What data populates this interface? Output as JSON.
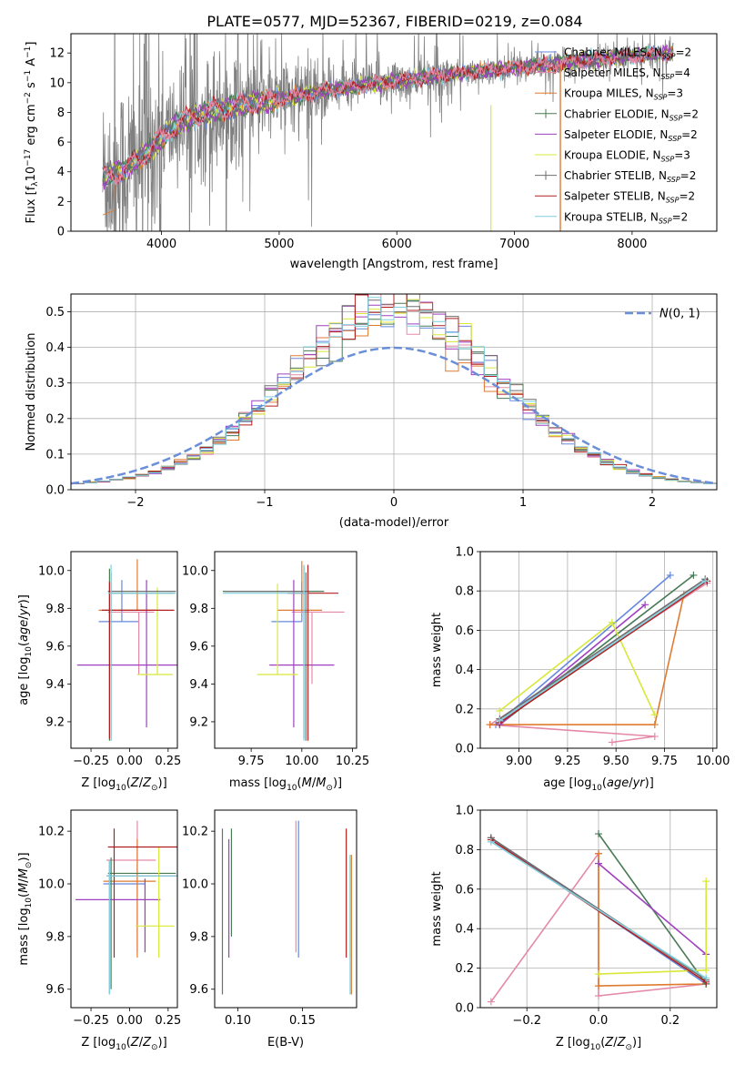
{
  "title": "PLATE=0577, MJD=52367, FIBERID=0219, z=0.084",
  "colors": {
    "series": [
      "#6688dd",
      "#e48aa8",
      "#e07a30",
      "#4a7a55",
      "#a040c0",
      "#d8e838",
      "#6e6e6e",
      "#b02020",
      "#80d0e0"
    ],
    "spectrum": "#808080",
    "dashed": "#6a8fd8",
    "grid": "#b0b0b0"
  },
  "legend_names": [
    "Chabrier MILES, N_SSP=2",
    "Salpeter MILES, N_SSP=4",
    "Kroupa MILES, N_SSP=3",
    "Chabrier ELODIE, N_SSP=2",
    "Salpeter ELODIE, N_SSP=2",
    "Kroupa ELODIE, N_SSP=3",
    "Chabrier STELIB, N_SSP=2",
    "Salpeter STELIB, N_SSP=2",
    "Kroupa STELIB, N_SSP=2"
  ],
  "chart_data": [
    {
      "id": "spectrum",
      "type": "line",
      "xlabel": "wavelength [Angstrom, rest frame]",
      "ylabel": "Flux [f_λ 10^-17 erg cm^-2 s^-1 A^-1]",
      "xlim": [
        3230,
        8720
      ],
      "ylim": [
        0,
        13.3
      ],
      "xticks": [
        4000,
        5000,
        6000,
        7000,
        8000
      ],
      "yticks": [
        0,
        2,
        4,
        6,
        8,
        10,
        12
      ],
      "grid": false,
      "legend_position": "right",
      "data_range_x": [
        3500,
        8350
      ],
      "model_points": [
        [
          3500,
          3.6
        ],
        [
          3700,
          4.2
        ],
        [
          3900,
          5.5
        ],
        [
          4100,
          7.0
        ],
        [
          4300,
          7.8
        ],
        [
          4600,
          8.4
        ],
        [
          5000,
          8.9
        ],
        [
          5500,
          9.6
        ],
        [
          6000,
          10.1
        ],
        [
          6500,
          10.6
        ],
        [
          7000,
          11.0
        ],
        [
          7500,
          11.4
        ],
        [
          8000,
          11.8
        ],
        [
          8350,
          12.0
        ]
      ]
    },
    {
      "id": "residuals",
      "type": "histogram",
      "xlabel": "(data-model)/error",
      "ylabel": "Normed distribution",
      "xlim": [
        -2.5,
        2.5
      ],
      "ylim": [
        0,
        0.55
      ],
      "xticks": [
        -2,
        -1,
        0,
        1,
        2
      ],
      "yticks": [
        0.0,
        0.1,
        0.2,
        0.3,
        0.4,
        0.5
      ],
      "grid": true,
      "legend": "N(0,1)",
      "legend_position": "top-right",
      "bin_width": 0.1,
      "approx_peak": 0.49,
      "reference_curve": "standard normal pdf"
    },
    {
      "id": "age_vs_Z",
      "type": "errorbar",
      "xlabel": "Z [log10(Z/Z⊙)]",
      "ylabel": "age  [log10(age/yr)]",
      "xlim": [
        -0.38,
        0.31
      ],
      "ylim": [
        9.06,
        10.1
      ],
      "xticks": [
        -0.25,
        0.0,
        0.25
      ],
      "yticks": [
        9.2,
        9.4,
        9.6,
        9.8,
        10.0
      ],
      "points": [
        {
          "x": -0.05,
          "y": 9.73,
          "xerr": [
            0.15,
            0.11
          ],
          "yerr": [
            0.0,
            0.22
          ]
        },
        {
          "x": 0.06,
          "y": 9.78,
          "xerr": [
            0.2,
            0.1
          ],
          "yerr": [
            0.33,
            0.0
          ]
        },
        {
          "x": 0.05,
          "y": 9.79,
          "xerr": [
            0.25,
            0.12
          ],
          "yerr": [
            0.0,
            0.27
          ]
        },
        {
          "x": -0.13,
          "y": 9.88,
          "xerr": [
            0.0,
            0.42
          ],
          "yerr": [
            0.78,
            0.13
          ]
        },
        {
          "x": 0.11,
          "y": 9.5,
          "xerr": [
            0.45,
            0.2
          ],
          "yerr": [
            0.33,
            0.45
          ]
        },
        {
          "x": 0.18,
          "y": 9.45,
          "xerr": [
            0.13,
            0.1
          ],
          "yerr": [
            0.0,
            0.46
          ]
        },
        {
          "x": -0.12,
          "y": 9.89,
          "xerr": [
            0.02,
            0.42
          ],
          "yerr": [
            0.79,
            0.1
          ]
        },
        {
          "x": -0.13,
          "y": 9.79,
          "xerr": [
            0.05,
            0.42
          ],
          "yerr": [
            0.68,
            0.15
          ]
        },
        {
          "x": -0.12,
          "y": 9.88,
          "xerr": [
            0.02,
            0.42
          ],
          "yerr": [
            0.78,
            0.15
          ]
        }
      ]
    },
    {
      "id": "age_vs_mass",
      "type": "errorbar",
      "xlabel": "mass [log10(M/M⊙)]",
      "ylabel": "",
      "xlim": [
        9.57,
        10.27
      ],
      "ylim": [
        9.06,
        10.1
      ],
      "xticks": [
        9.75,
        10.0,
        10.25
      ],
      "yticks": [
        9.2,
        9.4,
        9.6,
        9.8,
        10.0
      ],
      "points": [
        {
          "x": 10.0,
          "y": 9.73,
          "xerr": [
            0.15,
            0.0
          ],
          "yerr": [
            0.0,
            0.21
          ]
        },
        {
          "x": 10.05,
          "y": 9.78,
          "xerr": [
            0.1,
            0.16
          ],
          "yerr": [
            0.38,
            0.0
          ]
        },
        {
          "x": 10.0,
          "y": 9.79,
          "xerr": [
            0.12,
            0.1
          ],
          "yerr": [
            0.0,
            0.26
          ]
        },
        {
          "x": 10.01,
          "y": 9.89,
          "xerr": [
            0.4,
            0.1
          ],
          "yerr": [
            0.78,
            0.13
          ]
        },
        {
          "x": 9.96,
          "y": 9.5,
          "xerr": [
            0.12,
            0.2
          ],
          "yerr": [
            0.33,
            0.45
          ]
        },
        {
          "x": 9.88,
          "y": 9.45,
          "xerr": [
            0.1,
            0.1
          ],
          "yerr": [
            0.0,
            0.48
          ]
        },
        {
          "x": 10.02,
          "y": 9.89,
          "xerr": [
            0.4,
            0.02
          ],
          "yerr": [
            0.79,
            0.1
          ]
        },
        {
          "x": 10.03,
          "y": 9.88,
          "xerr": [
            0.1,
            0.15
          ],
          "yerr": [
            0.78,
            0.15
          ]
        },
        {
          "x": 10.01,
          "y": 9.88,
          "xerr": [
            0.4,
            0.02
          ],
          "yerr": [
            0.78,
            0.15
          ]
        }
      ]
    },
    {
      "id": "weight_vs_age",
      "type": "line",
      "xlabel": "age  [log10(age/yr)]",
      "ylabel": "mass weight",
      "xlim": [
        8.8,
        10.02
      ],
      "ylim": [
        0,
        1.0
      ],
      "xticks": [
        9.0,
        9.25,
        9.5,
        9.75,
        10.0
      ],
      "yticks": [
        0.0,
        0.2,
        0.4,
        0.6,
        0.8,
        1.0
      ],
      "grid": true,
      "series": [
        {
          "x": [
            8.88,
            9.78
          ],
          "y": [
            0.12,
            0.88
          ]
        },
        {
          "x": [
            9.48,
            9.7,
            8.85,
            9.97
          ],
          "y": [
            0.03,
            0.06,
            0.12,
            0.84
          ]
        },
        {
          "x": [
            8.85,
            9.7,
            9.85
          ],
          "y": [
            0.12,
            0.12,
            0.78
          ]
        },
        {
          "x": [
            8.9,
            9.9
          ],
          "y": [
            0.12,
            0.88
          ]
        },
        {
          "x": [
            8.9,
            9.65
          ],
          "y": [
            0.12,
            0.73
          ]
        },
        {
          "x": [
            8.9,
            9.48,
            9.7
          ],
          "y": [
            0.19,
            0.64,
            0.17
          ]
        },
        {
          "x": [
            8.9,
            9.96
          ],
          "y": [
            0.15,
            0.86
          ]
        },
        {
          "x": [
            8.9,
            9.97
          ],
          "y": [
            0.13,
            0.85
          ]
        },
        {
          "x": [
            8.9,
            9.96
          ],
          "y": [
            0.14,
            0.85
          ]
        }
      ]
    },
    {
      "id": "mass_vs_Z",
      "type": "errorbar",
      "xlabel": "Z [log10(Z/Z⊙)]",
      "ylabel": "mass [log10(M/M⊙)]",
      "xlim": [
        -0.38,
        0.31
      ],
      "ylim": [
        9.53,
        10.28
      ],
      "xticks": [
        -0.25,
        0.0,
        0.25
      ],
      "yticks": [
        9.6,
        9.8,
        10.0,
        10.2
      ],
      "points": [
        {
          "x": -0.02,
          "y": 10.0,
          "xerr": [
            0.15,
            0.12
          ],
          "yerr": [
            0.0,
            0.0
          ]
        },
        {
          "x": 0.05,
          "y": 10.09,
          "xerr": [
            0.2,
            0.12
          ],
          "yerr": [
            0.35,
            0.15
          ]
        },
        {
          "x": 0.05,
          "y": 10.01,
          "xerr": [
            0.22,
            0.12
          ],
          "yerr": [
            0.29,
            0.16
          ]
        },
        {
          "x": -0.12,
          "y": 10.04,
          "xerr": [
            0.02,
            0.42
          ],
          "yerr": [
            0.44,
            0.06
          ]
        },
        {
          "x": 0.1,
          "y": 9.94,
          "xerr": [
            0.45,
            0.1
          ],
          "yerr": [
            0.2,
            0.08
          ]
        },
        {
          "x": 0.19,
          "y": 9.84,
          "xerr": [
            0.15,
            0.1
          ],
          "yerr": [
            0.12,
            0.3
          ]
        },
        {
          "x": -0.13,
          "y": 10.03,
          "xerr": [
            0.02,
            0.45
          ],
          "yerr": [
            0.45,
            0.06
          ]
        },
        {
          "x": -0.1,
          "y": 10.14,
          "xerr": [
            0.04,
            0.42
          ],
          "yerr": [
            0.42,
            0.07
          ]
        },
        {
          "x": -0.13,
          "y": 10.03,
          "xerr": [
            0.02,
            0.45
          ],
          "yerr": [
            0.45,
            0.06
          ]
        }
      ]
    },
    {
      "id": "mass_vs_EBV",
      "type": "errorbar",
      "xlabel": "E(B-V)",
      "ylabel": "",
      "xlim": [
        0.082,
        0.192
      ],
      "ylim": [
        9.53,
        10.28
      ],
      "xticks": [
        0.1,
        0.15
      ],
      "yticks": [
        9.6,
        9.8,
        10.0,
        10.2
      ],
      "points": [
        {
          "x": 0.147,
          "y": 10.0,
          "yerr": [
            0.28,
            0.24
          ]
        },
        {
          "x": 0.145,
          "y": 10.0,
          "yerr": [
            0.26,
            0.24
          ]
        },
        {
          "x": 0.188,
          "y": 10.0,
          "yerr": [
            0.42,
            0.11
          ]
        },
        {
          "x": 0.095,
          "y": 10.0,
          "yerr": [
            0.2,
            0.21
          ]
        },
        {
          "x": 0.093,
          "y": 9.97,
          "yerr": [
            0.25,
            0.2
          ]
        },
        {
          "x": 0.187,
          "y": 9.85,
          "yerr": [
            0.13,
            0.26
          ]
        },
        {
          "x": 0.088,
          "y": 9.96,
          "yerr": [
            0.38,
            0.25
          ]
        },
        {
          "x": 0.184,
          "y": 9.96,
          "yerr": [
            0.24,
            0.25
          ]
        },
        {
          "x": 0.187,
          "y": 9.8,
          "yerr": [
            0.22,
            0.31
          ]
        }
      ]
    },
    {
      "id": "weight_vs_Z",
      "type": "line",
      "xlabel": "Z [log10(Z/Z⊙)]",
      "ylabel": "mass weight",
      "xlim": [
        -0.33,
        0.33
      ],
      "ylim": [
        0,
        1.0
      ],
      "xticks": [
        -0.2,
        0.0,
        0.2
      ],
      "yticks": [
        0.0,
        0.2,
        0.4,
        0.6,
        0.8,
        1.0
      ],
      "grid": true,
      "series": [
        {
          "x": [
            -0.3,
            0.3
          ],
          "y": [
            0.86,
            0.12
          ]
        },
        {
          "x": [
            -0.3,
            0.0,
            0.0,
            0.3
          ],
          "y": [
            0.03,
            0.78,
            0.06,
            0.12
          ]
        },
        {
          "x": [
            0.0,
            0.0,
            0.3
          ],
          "y": [
            0.78,
            0.11,
            0.12
          ]
        },
        {
          "x": [
            0.0,
            0.3
          ],
          "y": [
            0.88,
            0.12
          ]
        },
        {
          "x": [
            0.0,
            0.3
          ],
          "y": [
            0.73,
            0.27
          ]
        },
        {
          "x": [
            0.3,
            0.3,
            0.0
          ],
          "y": [
            0.64,
            0.19,
            0.17
          ]
        },
        {
          "x": [
            -0.3,
            0.3
          ],
          "y": [
            0.86,
            0.14
          ]
        },
        {
          "x": [
            -0.3,
            0.3
          ],
          "y": [
            0.85,
            0.13
          ]
        },
        {
          "x": [
            -0.3,
            0.3
          ],
          "y": [
            0.84,
            0.15
          ]
        }
      ]
    }
  ]
}
